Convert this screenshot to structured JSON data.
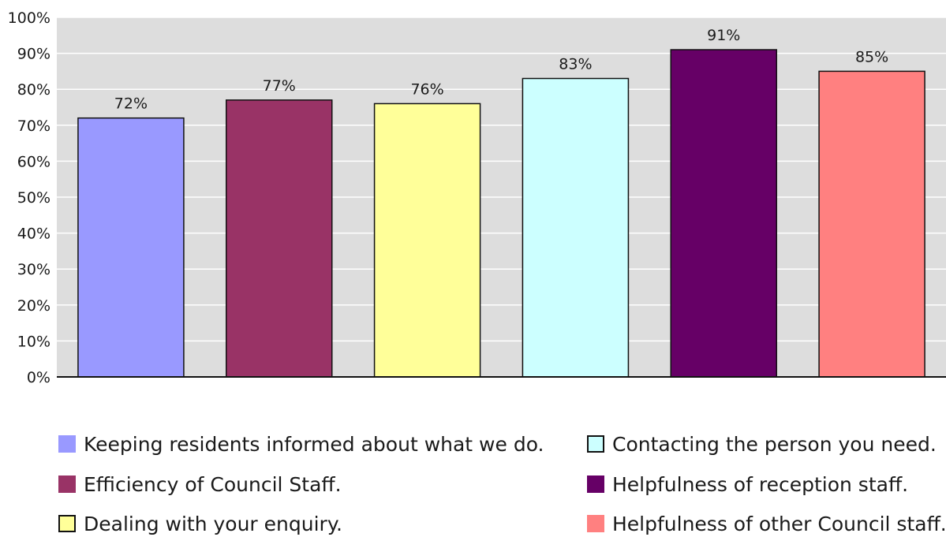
{
  "chart_data": {
    "type": "bar",
    "categories": [
      "Keeping residents informed about what we do.",
      "Efficiency of Council Staff.",
      "Dealing with your enquiry.",
      "Contacting the person you need.",
      "Helpfulness of reception staff.",
      "Helpfulness of other Council staff."
    ],
    "values": [
      72,
      77,
      76,
      83,
      91,
      85
    ],
    "data_labels": [
      "72%",
      "77%",
      "76%",
      "83%",
      "91%",
      "85%"
    ],
    "colors": [
      "#9999ff",
      "#993366",
      "#ffff99",
      "#ccffff",
      "#660066",
      "#ff8080"
    ],
    "ylim": [
      0,
      100
    ],
    "yticks": [
      0,
      10,
      20,
      30,
      40,
      50,
      60,
      70,
      80,
      90,
      100
    ],
    "ytick_labels": [
      "0%",
      "10%",
      "20%",
      "30%",
      "40%",
      "50%",
      "60%",
      "70%",
      "80%",
      "90%",
      "100%"
    ],
    "plot_background": "#dddddd",
    "grid": true,
    "legend_position": "bottom"
  }
}
